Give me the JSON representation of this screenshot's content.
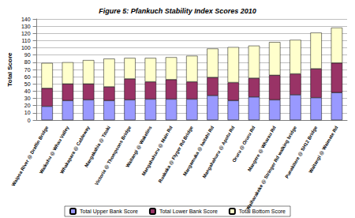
{
  "chart_data": {
    "type": "bar",
    "title": "Figure 5: Pfankuch Stability Index Scores 2010",
    "ylabel": "Total Score",
    "categories": [
      "Waipoa River @ Draffin Bridge",
      "Waikohu @ Whau Valley",
      "Whakapara @ Cableway",
      "Mangakahia @ Titoki",
      "Victoria @ Thompsons Bridge",
      "Waitangi @ Wakelins",
      "Mangahahuru @ Main Rd",
      "Ruakaka @ Flyger Rd Bridge",
      "Mangamuka @ Iwitahi Rd",
      "Mangahahuru @ Apotu Rd",
      "Oruru @ Oruru Rd",
      "Mangere @ Wharau Rd",
      "Waiharakeke @ Stringer Rd walking bridge",
      "Punakitere @ SH12 Bridge",
      "Waitangi @ Waimate Rd"
    ],
    "series": [
      {
        "name": "Total Upper Bank Score",
        "color": "#9999ff",
        "values": [
          19,
          27,
          28,
          27,
          28,
          29,
          29,
          29,
          34,
          27,
          32,
          28,
          35,
          31,
          38
        ]
      },
      {
        "name": "Total Lower Bank Score",
        "color": "#993366",
        "values": [
          25,
          23,
          22,
          19,
          29,
          24,
          27,
          24,
          25,
          25,
          26,
          34,
          29,
          40,
          41
        ]
      },
      {
        "name": "Total Bottom Score",
        "color": "#ffffcc",
        "values": [
          35,
          30,
          33,
          39,
          29,
          33,
          31,
          36,
          40,
          49,
          45,
          46,
          47,
          50,
          49
        ]
      }
    ],
    "stacked": true,
    "grid": true,
    "legend": "bottom",
    "ylim": [
      0,
      140
    ],
    "yticks": [
      0,
      10,
      20,
      30,
      40,
      50,
      60,
      70,
      80,
      90,
      100,
      110,
      120,
      130,
      140
    ]
  }
}
